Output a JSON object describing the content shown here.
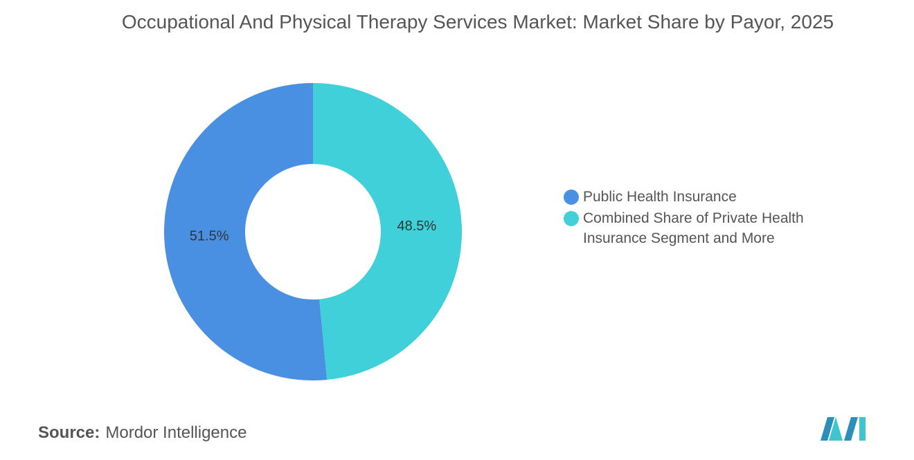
{
  "chart_data": {
    "type": "pie",
    "title": "Occupational And Physical Therapy Services Market: Market Share by Payor, 2025",
    "categories": [
      "Public Health Insurance",
      "Combined Share of Private Health Insurance Segment and More"
    ],
    "values": [
      51.5,
      48.5
    ],
    "value_labels": [
      "51.5%",
      "48.5%"
    ],
    "colors": [
      "#4a90e2",
      "#3fd0d9"
    ],
    "donut": true
  },
  "source_label": "Source:",
  "source": "Mordor Intelligence"
}
